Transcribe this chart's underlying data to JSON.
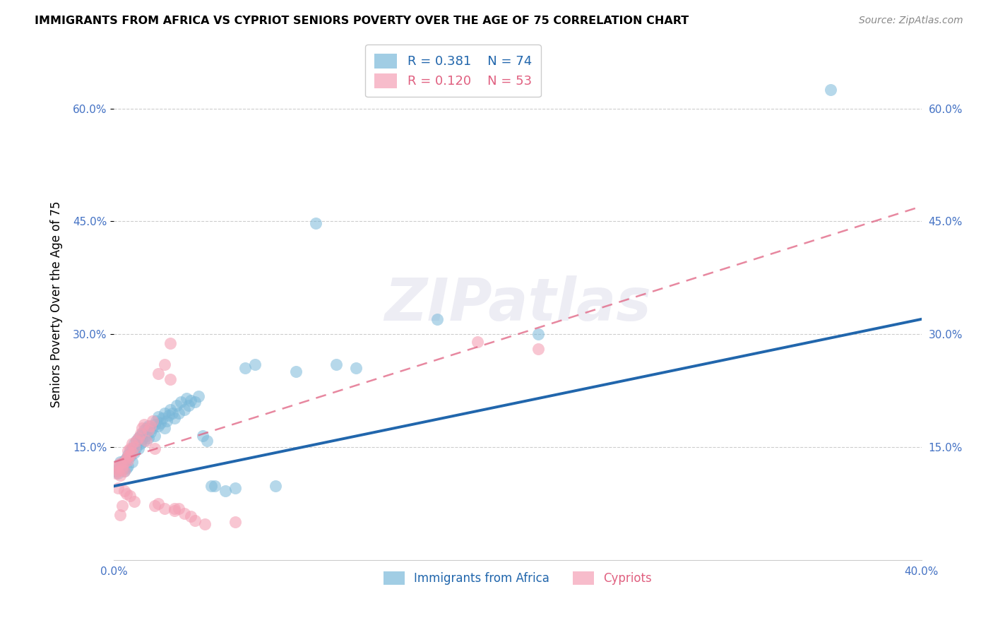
{
  "title": "IMMIGRANTS FROM AFRICA VS CYPRIOT SENIORS POVERTY OVER THE AGE OF 75 CORRELATION CHART",
  "source": "Source: ZipAtlas.com",
  "ylabel": "Seniors Poverty Over the Age of 75",
  "xlim": [
    0.0,
    0.4
  ],
  "ylim": [
    0.0,
    0.68
  ],
  "yticks": [
    0.15,
    0.3,
    0.45,
    0.6
  ],
  "ytick_labels": [
    "15.0%",
    "30.0%",
    "45.0%",
    "60.0%"
  ],
  "xticks": [
    0.0,
    0.1,
    0.2,
    0.3,
    0.4
  ],
  "africa_R": "0.381",
  "africa_N": "74",
  "cypriot_R": "0.120",
  "cypriot_N": "53",
  "africa_color": "#7ab8d9",
  "cypriot_color": "#f4a0b5",
  "africa_line_color": "#2166ac",
  "cypriot_line_color": "#e06080",
  "background_color": "#ffffff",
  "grid_color": "#c8c8c8",
  "watermark": "ZIPatlas",
  "africa_line_x0": 0.0,
  "africa_line_y0": 0.098,
  "africa_line_x1": 0.4,
  "africa_line_y1": 0.32,
  "cypriot_line_x0": 0.0,
  "cypriot_line_y0": 0.13,
  "cypriot_line_x1": 0.4,
  "cypriot_line_y1": 0.47,
  "africa_x": [
    0.001,
    0.002,
    0.002,
    0.003,
    0.003,
    0.004,
    0.004,
    0.005,
    0.005,
    0.006,
    0.006,
    0.007,
    0.007,
    0.008,
    0.008,
    0.009,
    0.009,
    0.01,
    0.01,
    0.011,
    0.011,
    0.012,
    0.012,
    0.013,
    0.013,
    0.014,
    0.014,
    0.015,
    0.015,
    0.016,
    0.016,
    0.017,
    0.017,
    0.018,
    0.019,
    0.02,
    0.02,
    0.021,
    0.022,
    0.022,
    0.023,
    0.024,
    0.025,
    0.025,
    0.026,
    0.027,
    0.028,
    0.029,
    0.03,
    0.031,
    0.032,
    0.033,
    0.035,
    0.036,
    0.037,
    0.038,
    0.04,
    0.042,
    0.044,
    0.046,
    0.048,
    0.05,
    0.055,
    0.06,
    0.065,
    0.07,
    0.08,
    0.09,
    0.1,
    0.11,
    0.12,
    0.16,
    0.21,
    0.355
  ],
  "africa_y": [
    0.118,
    0.122,
    0.115,
    0.125,
    0.13,
    0.12,
    0.128,
    0.132,
    0.118,
    0.135,
    0.122,
    0.14,
    0.125,
    0.145,
    0.138,
    0.13,
    0.148,
    0.142,
    0.155,
    0.15,
    0.158,
    0.148,
    0.162,
    0.155,
    0.165,
    0.16,
    0.168,
    0.158,
    0.172,
    0.165,
    0.175,
    0.162,
    0.178,
    0.17,
    0.175,
    0.18,
    0.165,
    0.185,
    0.178,
    0.19,
    0.182,
    0.188,
    0.195,
    0.175,
    0.185,
    0.192,
    0.2,
    0.195,
    0.188,
    0.205,
    0.195,
    0.21,
    0.2,
    0.215,
    0.205,
    0.212,
    0.21,
    0.218,
    0.165,
    0.158,
    0.098,
    0.098,
    0.092,
    0.095,
    0.255,
    0.26,
    0.098,
    0.25,
    0.448,
    0.26,
    0.255,
    0.32,
    0.3,
    0.625
  ],
  "cypriot_x": [
    0.001,
    0.001,
    0.002,
    0.002,
    0.002,
    0.003,
    0.003,
    0.003,
    0.004,
    0.004,
    0.004,
    0.005,
    0.005,
    0.005,
    0.006,
    0.006,
    0.007,
    0.007,
    0.007,
    0.008,
    0.008,
    0.008,
    0.009,
    0.009,
    0.01,
    0.01,
    0.011,
    0.012,
    0.013,
    0.014,
    0.015,
    0.016,
    0.017,
    0.018,
    0.019,
    0.02,
    0.022,
    0.025,
    0.028,
    0.03,
    0.02,
    0.022,
    0.025,
    0.028,
    0.03,
    0.032,
    0.035,
    0.038,
    0.04,
    0.045,
    0.06,
    0.18,
    0.21
  ],
  "cypriot_y": [
    0.115,
    0.122,
    0.118,
    0.125,
    0.095,
    0.112,
    0.128,
    0.06,
    0.12,
    0.125,
    0.072,
    0.118,
    0.13,
    0.092,
    0.135,
    0.088,
    0.138,
    0.132,
    0.145,
    0.14,
    0.085,
    0.148,
    0.142,
    0.155,
    0.15,
    0.078,
    0.158,
    0.162,
    0.168,
    0.175,
    0.18,
    0.158,
    0.172,
    0.178,
    0.185,
    0.148,
    0.248,
    0.26,
    0.24,
    0.068,
    0.072,
    0.075,
    0.068,
    0.288,
    0.065,
    0.068,
    0.062,
    0.058,
    0.052,
    0.048,
    0.05,
    0.29,
    0.28
  ]
}
